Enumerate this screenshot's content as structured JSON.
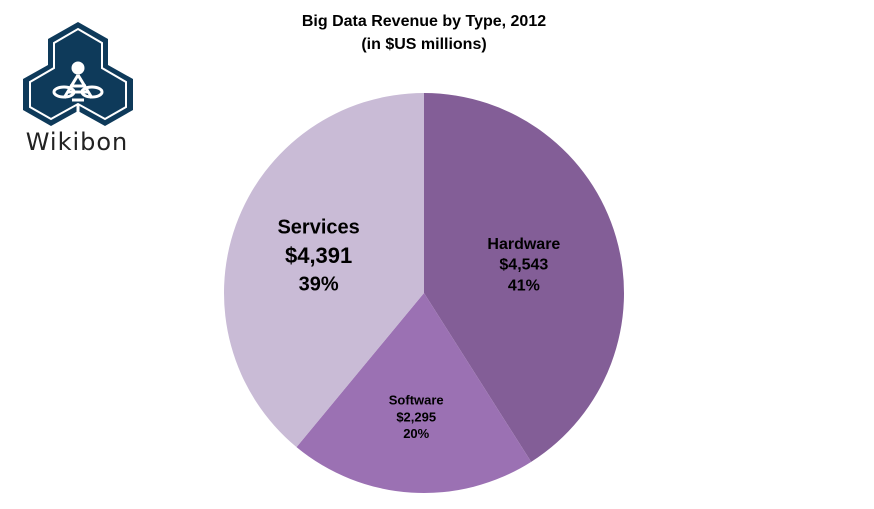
{
  "logo": {
    "text": "Wikibon",
    "color": "#0e3a5a"
  },
  "chart_data": {
    "type": "pie",
    "title": "Big Data Revenue by Type, 2012",
    "subtitle": "(in $US millions)",
    "slices": [
      {
        "name": "Hardware",
        "value": 4543,
        "value_label": "$4,543",
        "percent_label": "41%",
        "percent": 41,
        "color": "#835e97"
      },
      {
        "name": "Software",
        "value": 2295,
        "value_label": "$2,295",
        "percent_label": "20%",
        "percent": 20,
        "color": "#9b71b3"
      },
      {
        "name": "Services",
        "value": 4391,
        "value_label": "$4,391",
        "percent_label": "39%",
        "percent": 39,
        "color": "#c9bbd6"
      }
    ],
    "start_angle": "top",
    "direction": "clockwise",
    "legend": "none"
  }
}
